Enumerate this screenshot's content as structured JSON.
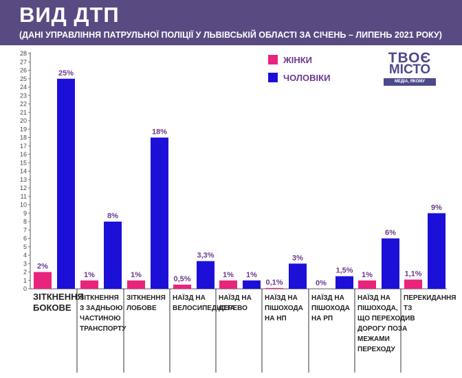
{
  "header": {
    "title": "ВИД ДТП",
    "subtitle": "(ДАНІ УПРАВЛІННЯ ПАТРУЛЬНОЇ ПОЛІЦІЇ У ЛЬВІВСЬКІЙ ОБЛАСТІ ЗА СІЧЕНЬ – ЛИПЕНЬ 2021 РОКУ)"
  },
  "logo": {
    "top": "ТВОЄ",
    "middle": "МІСТО",
    "tagline": "МЕДІА, ЯКОМУ ДОВІРЯЮТЬ"
  },
  "chart_data": {
    "type": "bar",
    "ylim": [
      0,
      28
    ],
    "grid": false,
    "legend_position": "top-right",
    "colors": {
      "women": "#e8247d",
      "men": "#1c10d8",
      "label": "#6b3a8e"
    },
    "categories": [
      [
        "ЗІТКНЕННЯ",
        "БОКОВЕ"
      ],
      [
        "ЗІТКНЕННЯ",
        "З ЗАДНЬОЮ",
        "ЧАСТИНОЮ",
        "ТРАНСПОРТУ"
      ],
      [
        "ЗІТКНЕННЯ",
        "ЛОБОВЕ"
      ],
      [
        "НАЇЗД НА",
        "ВЕЛОСИПЕДИСТА"
      ],
      [
        "НАЇЗД НА",
        "ДЕРЕВО"
      ],
      [
        "НАЇЗД НА",
        "ПІШОХОДА",
        "НА НП"
      ],
      [
        "НАЇЗД НА",
        "ПІШОХОДА",
        "НА РП"
      ],
      [
        "НАЇЗД НА",
        "ПІШОХОДА,",
        "ЩО ПЕРЕХОДИВ",
        "ДОРОГУ ПОЗА",
        "МЕЖАМИ",
        "ПЕРЕХОДУ"
      ],
      [
        "ПЕРЕКИДАННЯ",
        "ТЗ"
      ]
    ],
    "series": [
      {
        "name": "ЖІНКИ",
        "values": [
          2,
          1,
          1,
          0.5,
          1,
          0.1,
          0,
          1,
          1.1
        ],
        "labels": [
          "2%",
          "1%",
          "1%",
          "0,5%",
          "1%",
          "0,1%",
          "0%",
          "1%",
          "1,1%"
        ]
      },
      {
        "name": "ЧОЛОВІКИ",
        "values": [
          25,
          8,
          18,
          3.3,
          1,
          3,
          1.5,
          6,
          9
        ],
        "labels": [
          "25%",
          "8%",
          "18%",
          "3,3%",
          "1%",
          "3%",
          "1,5%",
          "6%",
          "9%"
        ]
      }
    ]
  }
}
